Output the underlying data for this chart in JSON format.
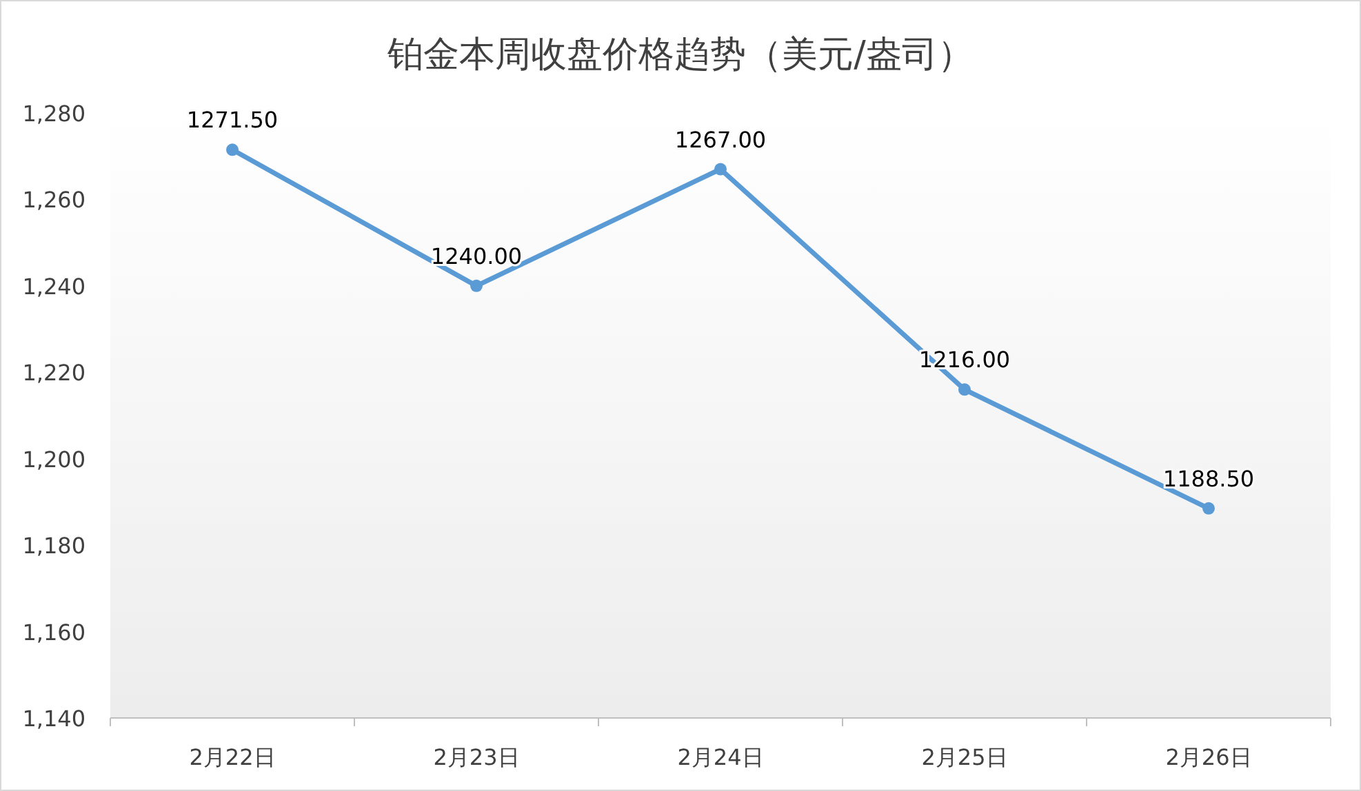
{
  "chart_data": {
    "type": "line",
    "title": "铂金本周收盘价格趋势（美元/盎司）",
    "categories": [
      "2月22日",
      "2月23日",
      "2月24日",
      "2月25日",
      "2月26日"
    ],
    "series": [
      {
        "color": "#5b9bd5",
        "values": [
          1271.5,
          1240,
          1267,
          1216,
          1188.5
        ],
        "value_labels": [
          "1271.50",
          "1240.00",
          "1267.00",
          "1216.00",
          "1188.50"
        ]
      }
    ],
    "ylim": [
      1140,
      1280
    ],
    "yticks": [
      {
        "value": 1140,
        "label": "1,140"
      },
      {
        "value": 1160,
        "label": "1,160"
      },
      {
        "value": 1180,
        "label": "1,180"
      },
      {
        "value": 1200,
        "label": "1,200"
      },
      {
        "value": 1220,
        "label": "1,220"
      },
      {
        "value": 1240,
        "label": "1,240"
      },
      {
        "value": 1260,
        "label": "1,260"
      },
      {
        "value": 1280,
        "label": "1,280"
      }
    ],
    "grid": false,
    "marker": "circle",
    "line_style": "solid"
  }
}
